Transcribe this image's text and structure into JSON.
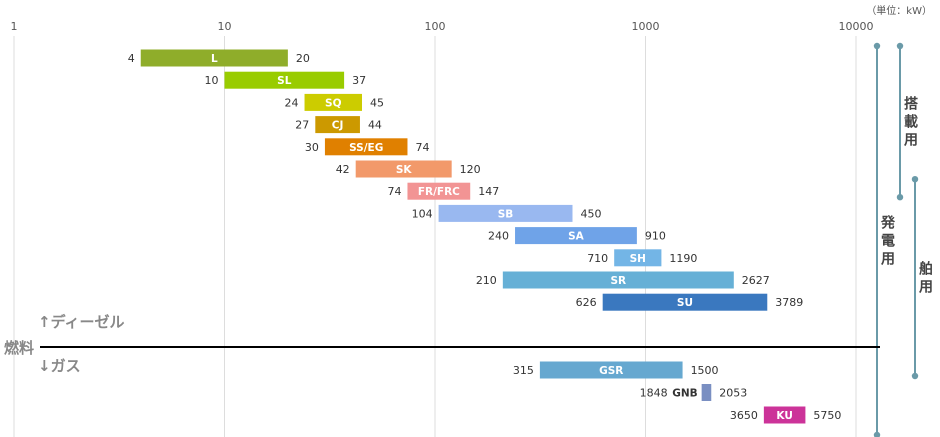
{
  "chart_data": {
    "type": "bar",
    "orientation": "horizontal-range",
    "x_scale": "log",
    "x_ticks": [
      1,
      10,
      100,
      1000,
      10000
    ],
    "x_tick_labels": [
      "1",
      "10",
      "100",
      "1000",
      "10000"
    ],
    "unit_label": "（単位：kW）",
    "fuel": {
      "upper_label": "↑ディーゼル",
      "divider_label": "燃料",
      "lower_label": "↓ガス"
    },
    "series": [
      {
        "name": "L",
        "min": 4,
        "max": 20,
        "min_label": "4",
        "max_label": "20",
        "color": "#8fad2a",
        "group": "diesel"
      },
      {
        "name": "SL",
        "min": 10,
        "max": 37,
        "min_label": "10",
        "max_label": "37",
        "color": "#99cc00",
        "group": "diesel"
      },
      {
        "name": "SQ",
        "min": 24,
        "max": 45,
        "min_label": "24",
        "max_label": "45",
        "color": "#cccc00",
        "group": "diesel"
      },
      {
        "name": "CJ",
        "min": 27,
        "max": 44,
        "min_label": "27",
        "max_label": "44",
        "color": "#cc9900",
        "group": "diesel"
      },
      {
        "name": "SS/EG",
        "min": 30,
        "max": 74,
        "min_label": "30",
        "max_label": "74",
        "color": "#e08000",
        "group": "diesel"
      },
      {
        "name": "SK",
        "min": 42,
        "max": 120,
        "min_label": "42",
        "max_label": "120",
        "color": "#f2996a",
        "group": "diesel"
      },
      {
        "name": "FR/FRC",
        "min": 74,
        "max": 147,
        "min_label": "74",
        "max_label": "147",
        "color": "#f29494",
        "group": "diesel"
      },
      {
        "name": "SB",
        "min": 104,
        "max": 450,
        "min_label": "104",
        "max_label": "450",
        "color": "#99b8f0",
        "group": "diesel"
      },
      {
        "name": "SA",
        "min": 240,
        "max": 910,
        "min_label": "240",
        "max_label": "910",
        "color": "#6fa3e8",
        "group": "diesel"
      },
      {
        "name": "SH",
        "min": 710,
        "max": 1190,
        "min_label": "710",
        "max_label": "1190",
        "color": "#73b5e6",
        "group": "diesel"
      },
      {
        "name": "SR",
        "min": 210,
        "max": 2627,
        "min_label": "210",
        "max_label": "2627",
        "color": "#66b0d6",
        "group": "diesel"
      },
      {
        "name": "SU",
        "min": 626,
        "max": 3789,
        "min_label": "626",
        "max_label": "3789",
        "color": "#3a78bf",
        "group": "diesel"
      },
      {
        "name": "GSR",
        "min": 315,
        "max": 1500,
        "min_label": "315",
        "max_label": "1500",
        "color": "#66a8d0",
        "group": "gas"
      },
      {
        "name": "GNB",
        "min": 1848,
        "max": 2053,
        "min_label": "1848",
        "max_label": "2053",
        "color": "#7a8fc2",
        "group": "gas"
      },
      {
        "name": "KU",
        "min": 3650,
        "max": 5750,
        "min_label": "3650",
        "max_label": "5750",
        "color": "#cc3399",
        "group": "gas"
      }
    ],
    "applications": [
      {
        "label": "搭載用",
        "from": "L",
        "to": "FR/FRC"
      },
      {
        "label": "発電用",
        "from": "L",
        "to": "KU"
      },
      {
        "label": "舶用",
        "from": "FR/FRC",
        "to": "GSR"
      }
    ],
    "colors": {
      "app_line": "#6a9aa8",
      "grid": "#dddddd",
      "divider": "#000000"
    }
  }
}
